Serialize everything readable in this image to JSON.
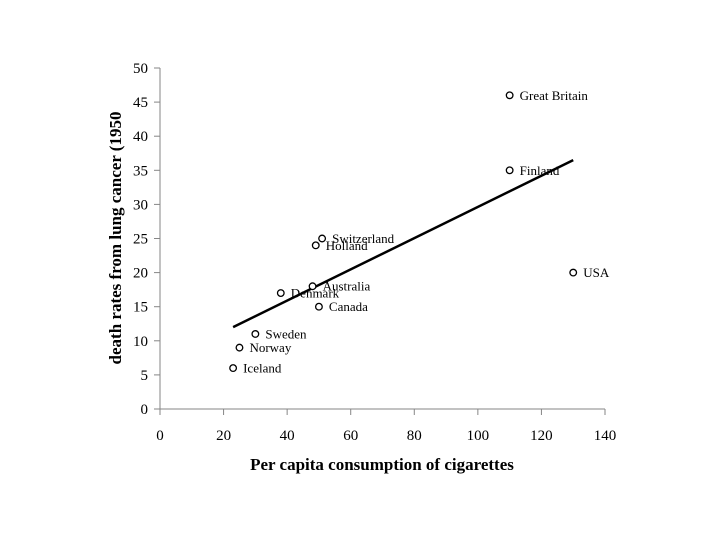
{
  "chart_data": {
    "type": "scatter",
    "xlabel": "Per capita consumption of cigarettes",
    "ylabel": "death rates from lung cancer (1950",
    "xlim": [
      0,
      140
    ],
    "ylim": [
      0,
      50
    ],
    "x_ticks": [
      0,
      20,
      40,
      60,
      80,
      100,
      120,
      140
    ],
    "y_ticks": [
      0,
      5,
      10,
      15,
      20,
      25,
      30,
      35,
      40,
      45,
      50
    ],
    "grid": false,
    "marker": "open-circle",
    "points": [
      {
        "label": "Iceland",
        "x": 23,
        "y": 6
      },
      {
        "label": "Norway",
        "x": 25,
        "y": 9
      },
      {
        "label": "Sweden",
        "x": 30,
        "y": 11
      },
      {
        "label": "Denmark",
        "x": 38,
        "y": 17
      },
      {
        "label": "Australia",
        "x": 48,
        "y": 18
      },
      {
        "label": "Holland",
        "x": 49,
        "y": 24
      },
      {
        "label": "Switzerland",
        "x": 51,
        "y": 25
      },
      {
        "label": "Canada",
        "x": 50,
        "y": 15
      },
      {
        "label": "Great Britain",
        "x": 110,
        "y": 46
      },
      {
        "label": "Finland",
        "x": 110,
        "y": 35
      },
      {
        "label": "USA",
        "x": 130,
        "y": 20
      }
    ],
    "trendline": {
      "x": [
        23,
        130
      ],
      "y": [
        12,
        36.5
      ]
    }
  }
}
